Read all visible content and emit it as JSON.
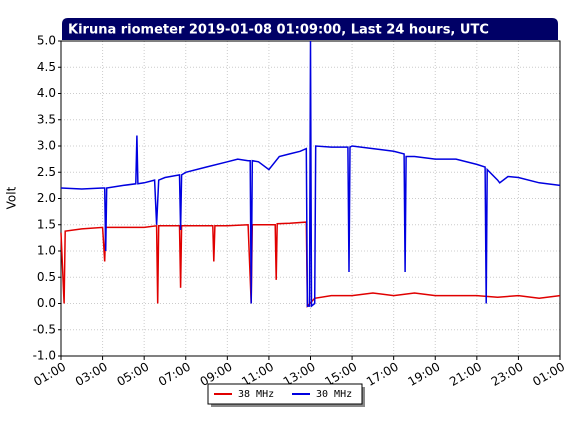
{
  "chart_data": {
    "type": "line",
    "title": "Kiruna riometer 2019-01-08 01:09:00, Last 24 hours, UTC",
    "y_label": "Volt",
    "xlim": [
      1,
      25
    ],
    "ylim": [
      -1,
      5
    ],
    "xticks": [
      {
        "value": 1,
        "label": "01:00"
      },
      {
        "value": 3,
        "label": "03:00"
      },
      {
        "value": 5,
        "label": "05:00"
      },
      {
        "value": 7,
        "label": "07:00"
      },
      {
        "value": 9,
        "label": "09:00"
      },
      {
        "value": 11,
        "label": "11:00"
      },
      {
        "value": 13,
        "label": "13:00"
      },
      {
        "value": 15,
        "label": "15:00"
      },
      {
        "value": 17,
        "label": "17:00"
      },
      {
        "value": 19,
        "label": "19:00"
      },
      {
        "value": 21,
        "label": "21:00"
      },
      {
        "value": 23,
        "label": "23:00"
      },
      {
        "value": 25,
        "label": "01:00"
      }
    ],
    "yticks": [
      {
        "value": -1,
        "label": "-1.0"
      },
      {
        "value": -0.5,
        "label": "-0.5"
      },
      {
        "value": 0,
        "label": "0.0"
      },
      {
        "value": 0.5,
        "label": "0.5"
      },
      {
        "value": 1,
        "label": "1.0"
      },
      {
        "value": 1.5,
        "label": "1.5"
      },
      {
        "value": 2,
        "label": "2.0"
      },
      {
        "value": 2.5,
        "label": "2.5"
      },
      {
        "value": 3,
        "label": "3.0"
      },
      {
        "value": 3.5,
        "label": "3.5"
      },
      {
        "value": 4,
        "label": "4.0"
      },
      {
        "value": 4.5,
        "label": "4.5"
      },
      {
        "value": 5,
        "label": "5.0"
      }
    ],
    "grid": true,
    "legend": "bottom",
    "series": [
      {
        "name": "38 MHz",
        "color": "#e00000",
        "x": [
          1,
          1.15,
          1.2,
          2,
          3,
          3.1,
          3.15,
          4,
          5,
          5.6,
          5.65,
          5.7,
          6.7,
          6.75,
          6.8,
          7,
          8,
          8.3,
          8.35,
          8.4,
          9,
          10,
          10.15,
          10.2,
          11,
          11.3,
          11.35,
          11.4,
          12,
          12.8,
          12.85,
          13.2,
          14,
          15,
          16,
          17,
          18,
          19,
          20,
          21,
          22,
          23,
          24,
          25
        ],
        "values": [
          1.35,
          0.0,
          1.38,
          1.42,
          1.45,
          0.8,
          1.45,
          1.45,
          1.45,
          1.48,
          0.0,
          1.48,
          1.48,
          0.3,
          1.48,
          1.48,
          1.48,
          1.48,
          0.8,
          1.48,
          1.48,
          1.5,
          0.0,
          1.5,
          1.5,
          1.5,
          0.45,
          1.52,
          1.53,
          1.55,
          -0.05,
          0.1,
          0.15,
          0.15,
          0.2,
          0.15,
          0.2,
          0.15,
          0.15,
          0.15,
          0.12,
          0.15,
          0.1,
          0.15
        ]
      },
      {
        "name": "30 MHz",
        "color": "#0000e0",
        "x": [
          1,
          2,
          3,
          3.1,
          3.15,
          3.2,
          4,
          4.6,
          4.65,
          4.7,
          5,
          5.5,
          5.6,
          5.7,
          6,
          6.7,
          6.75,
          6.8,
          7,
          8,
          9,
          9.5,
          10,
          10.1,
          10.15,
          10.2,
          10.5,
          11,
          11.5,
          12,
          12.5,
          12.8,
          12.85,
          12.95,
          13.0,
          13.05,
          13.2,
          13.25,
          14,
          14.8,
          14.85,
          14.9,
          15,
          16,
          17,
          17.5,
          17.55,
          17.6,
          18,
          19,
          20,
          21,
          21.4,
          21.45,
          21.5,
          22,
          22.1,
          22.5,
          23,
          24,
          25
        ],
        "values": [
          2.2,
          2.18,
          2.2,
          2.2,
          1.0,
          2.2,
          2.25,
          2.28,
          3.2,
          2.28,
          2.3,
          2.35,
          1.5,
          2.35,
          2.4,
          2.45,
          1.4,
          2.45,
          2.5,
          2.6,
          2.7,
          2.75,
          2.72,
          2.72,
          0.0,
          2.72,
          2.7,
          2.55,
          2.8,
          2.85,
          2.9,
          2.95,
          -0.05,
          -0.05,
          5.0,
          -0.05,
          0.0,
          3.0,
          2.98,
          2.98,
          0.6,
          2.98,
          3.0,
          2.95,
          2.9,
          2.85,
          0.6,
          2.8,
          2.8,
          2.75,
          2.75,
          2.65,
          2.6,
          0.0,
          2.55,
          2.35,
          2.3,
          2.42,
          2.4,
          2.3,
          2.25
        ]
      }
    ]
  }
}
